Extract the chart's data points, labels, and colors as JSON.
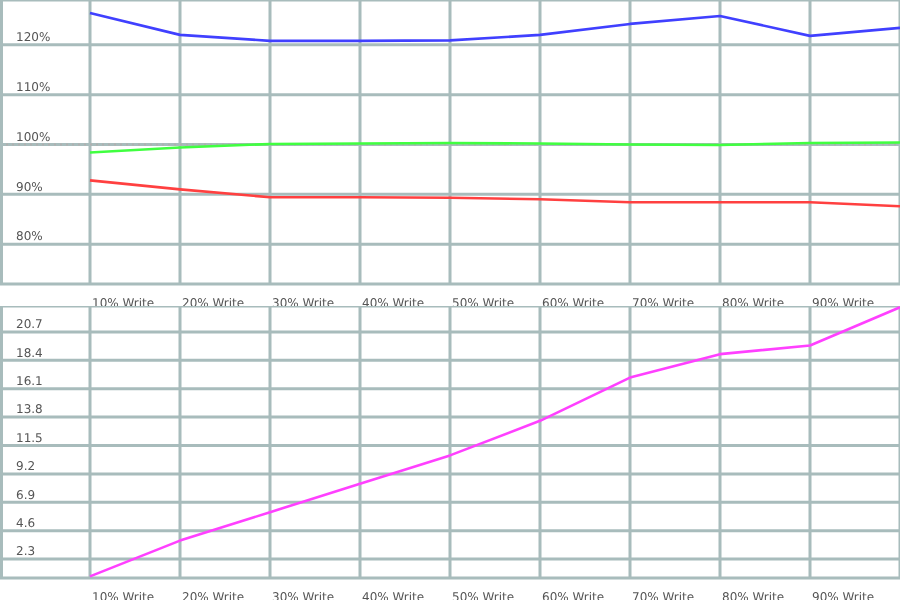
{
  "chart_data": [
    {
      "type": "line",
      "categories": [
        "10% Write",
        "20% Write",
        "30% Write",
        "40% Write",
        "50% Write",
        "60% Write",
        "70% Write",
        "80% Write",
        "90% Write",
        null
      ],
      "series": [
        {
          "color": "#4040ff",
          "values": [
            126.4,
            122,
            120.8,
            120.8,
            120.9,
            122,
            124.2,
            125.8,
            121.8,
            123.4
          ]
        },
        {
          "color": "#40ff40",
          "values": [
            98.4,
            99.4,
            100.1,
            100.2,
            100.3,
            100.2,
            100,
            99.9,
            100.3,
            100.4
          ]
        },
        {
          "color": "#ff4040",
          "values": [
            92.8,
            91,
            89.4,
            89.4,
            89.3,
            89,
            88.4,
            88.4,
            88.4,
            87.6
          ]
        }
      ],
      "ylim": [
        72,
        129
      ],
      "yticks": [
        {
          "value": 80,
          "label": "80%"
        },
        {
          "value": 90,
          "label": "90%"
        },
        {
          "value": 100,
          "label": "100%"
        },
        {
          "value": 110,
          "label": "110%"
        },
        {
          "value": 120,
          "label": "120%"
        }
      ],
      "ref_lines": [
        {
          "axis": "y",
          "value": 100,
          "color": "#b0b0b0",
          "line_style": "dotted"
        }
      ],
      "grid": true,
      "marker": "none"
    },
    {
      "type": "line",
      "categories": [
        "10% Write",
        "20% Write",
        "30% Write",
        "40% Write",
        "50% Write",
        "60% Write",
        "70% Write",
        "80% Write",
        "90% Write",
        null
      ],
      "series": [
        {
          "color": "#ff40ff",
          "values": [
            0.9,
            3.8,
            6.1,
            8.4,
            10.7,
            13.5,
            17,
            18.9,
            19.6,
            22.7
          ]
        }
      ],
      "ylim": [
        0.77,
        22.8
      ],
      "yticks": [
        2.3,
        4.6,
        6.9,
        9.2,
        11.5,
        13.8,
        16.1,
        18.4,
        20.7
      ],
      "grid": true,
      "marker": "none"
    }
  ]
}
